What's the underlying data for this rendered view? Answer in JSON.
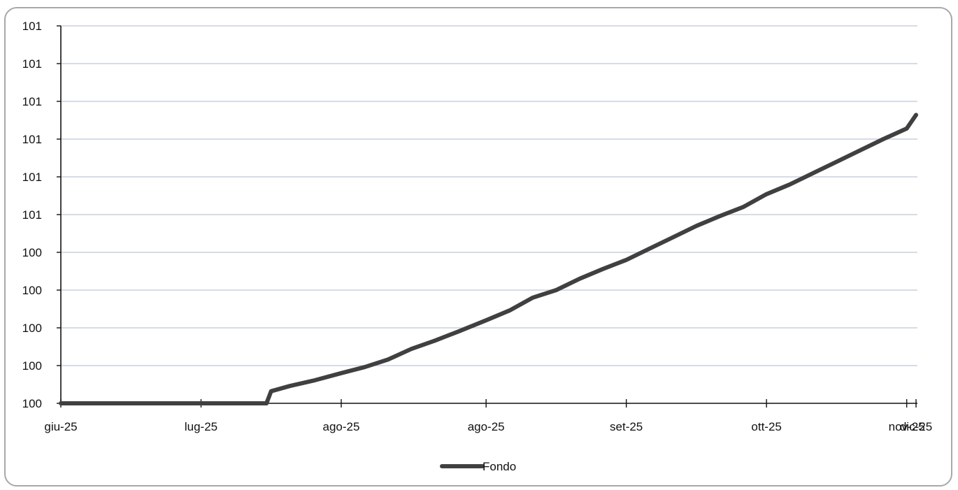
{
  "chart_data": {
    "type": "line",
    "title": "",
    "xlabel": "",
    "ylabel": "",
    "x_tick_labels": [
      "giu-25",
      "lug-25",
      "ago-25",
      "ago-25",
      "set-25",
      "ott-25",
      "nov-25",
      "dic-25"
    ],
    "y_tick_labels": [
      "100",
      "100",
      "100",
      "100",
      "100",
      "101",
      "101",
      "101",
      "101",
      "101",
      "101"
    ],
    "ylim": [
      100.0,
      100.5
    ],
    "y_tick_values": [
      100.0,
      100.05,
      100.1,
      100.15,
      100.2,
      100.25,
      100.3,
      100.35,
      100.4,
      100.45,
      100.5
    ],
    "x_axis": {
      "start": "2025-06-01",
      "end": "2025-12-01",
      "tick_dates": [
        "2025-06-01",
        "2025-07-01",
        "2025-07-31",
        "2025-08-31",
        "2025-09-30",
        "2025-10-30",
        "2025-11-29",
        "2025-12-01"
      ]
    },
    "grid": true,
    "legend_position": "bottom",
    "series": [
      {
        "name": "Fondo",
        "color": "#404040",
        "points": [
          {
            "x": "2025-06-01",
            "y": 100.0
          },
          {
            "x": "2025-07-15",
            "y": 100.0
          },
          {
            "x": "2025-07-16",
            "y": 100.016
          },
          {
            "x": "2025-07-20",
            "y": 100.023
          },
          {
            "x": "2025-07-25",
            "y": 100.03
          },
          {
            "x": "2025-07-31",
            "y": 100.04
          },
          {
            "x": "2025-08-05",
            "y": 100.048
          },
          {
            "x": "2025-08-10",
            "y": 100.058
          },
          {
            "x": "2025-08-15",
            "y": 100.072
          },
          {
            "x": "2025-08-20",
            "y": 100.083
          },
          {
            "x": "2025-08-25",
            "y": 100.095
          },
          {
            "x": "2025-08-31",
            "y": 100.11
          },
          {
            "x": "2025-09-05",
            "y": 100.123
          },
          {
            "x": "2025-09-10",
            "y": 100.14
          },
          {
            "x": "2025-09-15",
            "y": 100.15
          },
          {
            "x": "2025-09-20",
            "y": 100.165
          },
          {
            "x": "2025-09-25",
            "y": 100.178
          },
          {
            "x": "2025-09-30",
            "y": 100.19
          },
          {
            "x": "2025-10-05",
            "y": 100.205
          },
          {
            "x": "2025-10-10",
            "y": 100.22
          },
          {
            "x": "2025-10-15",
            "y": 100.235
          },
          {
            "x": "2025-10-20",
            "y": 100.248
          },
          {
            "x": "2025-10-25",
            "y": 100.26
          },
          {
            "x": "2025-10-30",
            "y": 100.277
          },
          {
            "x": "2025-11-04",
            "y": 100.29
          },
          {
            "x": "2025-11-09",
            "y": 100.305
          },
          {
            "x": "2025-11-14",
            "y": 100.32
          },
          {
            "x": "2025-11-19",
            "y": 100.335
          },
          {
            "x": "2025-11-24",
            "y": 100.35
          },
          {
            "x": "2025-11-29",
            "y": 100.364
          },
          {
            "x": "2025-12-01",
            "y": 100.382
          }
        ]
      }
    ]
  }
}
